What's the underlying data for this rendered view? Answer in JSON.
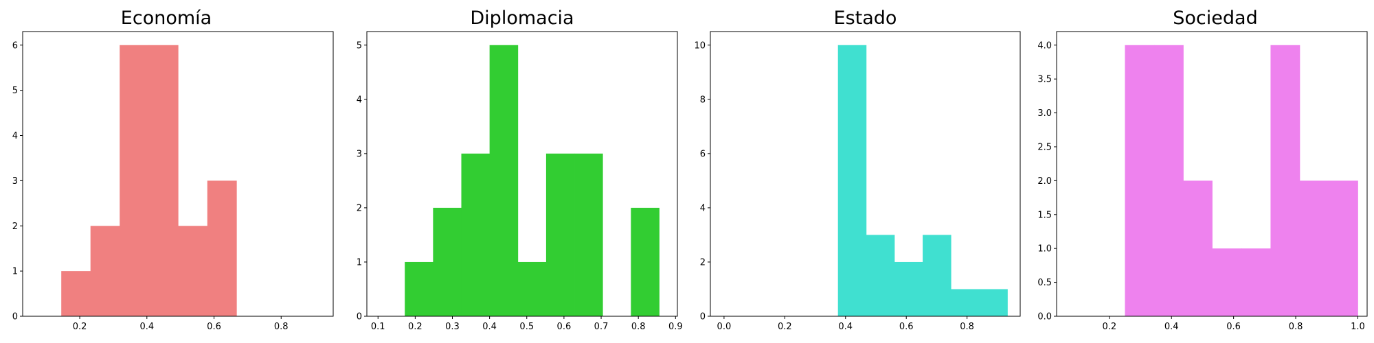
{
  "chart_data": [
    {
      "type": "bar",
      "title": "Economía",
      "color": "#f08080",
      "xlim": [
        0.03,
        0.955
      ],
      "ylim": [
        0,
        6.3
      ],
      "xticks": [
        0.2,
        0.4,
        0.6,
        0.8
      ],
      "yticks": [
        0,
        1,
        2,
        3,
        4,
        5,
        6
      ],
      "bins": [
        {
          "start": 0.145,
          "end": 0.232,
          "value": 1
        },
        {
          "start": 0.232,
          "end": 0.319,
          "value": 2
        },
        {
          "start": 0.319,
          "end": 0.406,
          "value": 6
        },
        {
          "start": 0.406,
          "end": 0.493,
          "value": 6
        },
        {
          "start": 0.493,
          "end": 0.58,
          "value": 2
        },
        {
          "start": 0.58,
          "end": 0.667,
          "value": 3
        }
      ]
    },
    {
      "type": "bar",
      "title": "Diplomacia",
      "color": "#32cd32",
      "xlim": [
        0.07,
        0.905
      ],
      "ylim": [
        0,
        5.25
      ],
      "xticks": [
        0.1,
        0.2,
        0.3,
        0.4,
        0.5,
        0.6,
        0.7,
        0.8,
        0.9
      ],
      "yticks": [
        0,
        1,
        2,
        3,
        4,
        5
      ],
      "bins": [
        {
          "start": 0.172,
          "end": 0.248,
          "value": 1
        },
        {
          "start": 0.248,
          "end": 0.324,
          "value": 2
        },
        {
          "start": 0.324,
          "end": 0.4,
          "value": 3
        },
        {
          "start": 0.4,
          "end": 0.476,
          "value": 5
        },
        {
          "start": 0.476,
          "end": 0.552,
          "value": 1
        },
        {
          "start": 0.552,
          "end": 0.628,
          "value": 3
        },
        {
          "start": 0.628,
          "end": 0.704,
          "value": 3
        },
        {
          "start": 0.704,
          "end": 0.78,
          "value": 0
        },
        {
          "start": 0.78,
          "end": 0.856,
          "value": 2
        }
      ]
    },
    {
      "type": "bar",
      "title": "Estado",
      "color": "#40e0d0",
      "xlim": [
        -0.045,
        0.975
      ],
      "ylim": [
        0,
        10.5
      ],
      "xticks": [
        0.0,
        0.2,
        0.4,
        0.6,
        0.8
      ],
      "yticks": [
        0,
        2,
        4,
        6,
        8,
        10
      ],
      "bins": [
        {
          "start": 0.375,
          "end": 0.468,
          "value": 10
        },
        {
          "start": 0.468,
          "end": 0.561,
          "value": 3
        },
        {
          "start": 0.561,
          "end": 0.654,
          "value": 2
        },
        {
          "start": 0.654,
          "end": 0.747,
          "value": 3
        },
        {
          "start": 0.747,
          "end": 0.84,
          "value": 1
        },
        {
          "start": 0.84,
          "end": 0.933,
          "value": 1
        }
      ]
    },
    {
      "type": "bar",
      "title": "Sociedad",
      "color": "#ee82ee",
      "xlim": [
        0.03,
        1.03
      ],
      "ylim": [
        0,
        4.2
      ],
      "xticks": [
        0.2,
        0.4,
        0.6,
        0.8,
        1.0
      ],
      "yticks": [
        0.0,
        0.5,
        1.0,
        1.5,
        2.0,
        2.5,
        3.0,
        3.5,
        4.0
      ],
      "bins": [
        {
          "start": 0.25,
          "end": 0.344,
          "value": 4
        },
        {
          "start": 0.344,
          "end": 0.438,
          "value": 4
        },
        {
          "start": 0.438,
          "end": 0.531,
          "value": 2
        },
        {
          "start": 0.531,
          "end": 0.625,
          "value": 1
        },
        {
          "start": 0.625,
          "end": 0.719,
          "value": 1
        },
        {
          "start": 0.719,
          "end": 0.813,
          "value": 4
        },
        {
          "start": 0.813,
          "end": 0.906,
          "value": 2
        },
        {
          "start": 0.906,
          "end": 1.0,
          "value": 2
        }
      ]
    }
  ]
}
